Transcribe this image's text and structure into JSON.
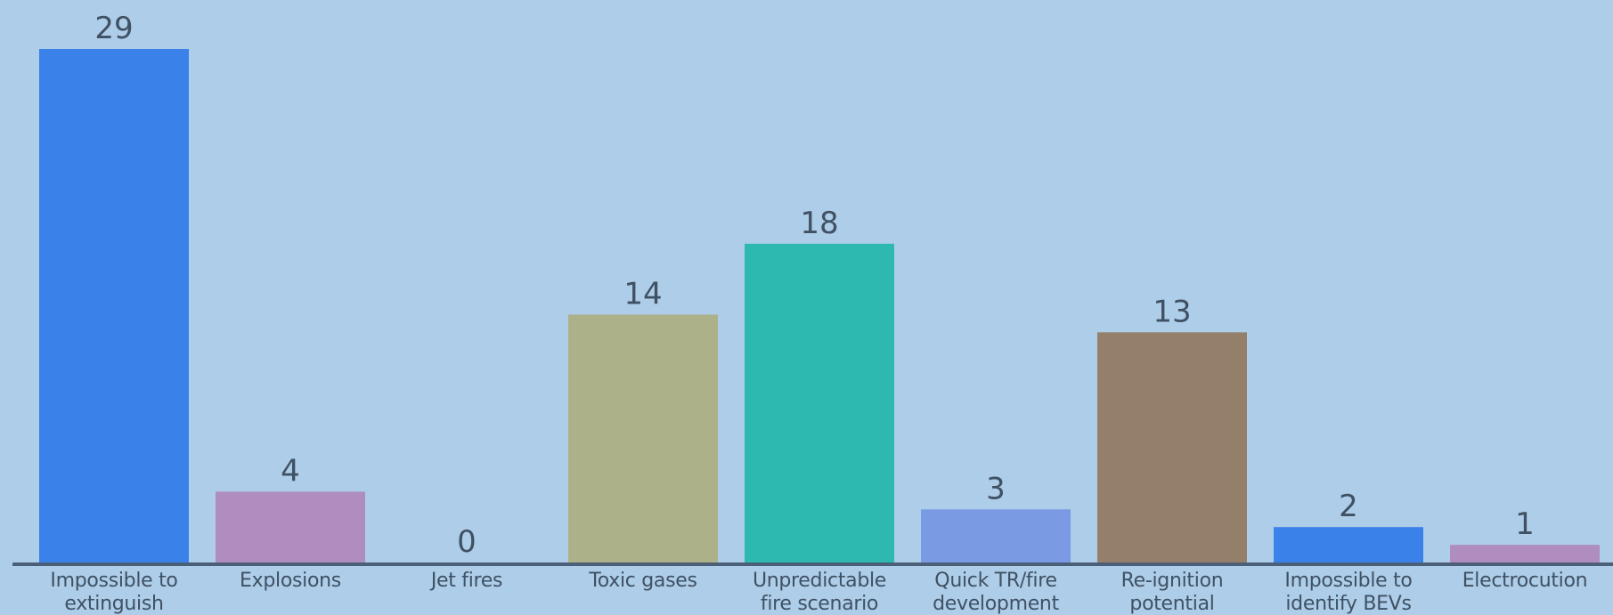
{
  "chart_data": {
    "type": "bar",
    "categories": [
      [
        "Impossible to",
        "extinguish"
      ],
      [
        "Explosions"
      ],
      [
        "Jet fires"
      ],
      [
        "Toxic gases"
      ],
      [
        "Unpredictable",
        "fire scenario"
      ],
      [
        "Quick TR/fire",
        "development"
      ],
      [
        "Re-ignition",
        "potential"
      ],
      [
        "Impossible to",
        "identify BEVs"
      ],
      [
        "Electrocution"
      ]
    ],
    "values": [
      29,
      4,
      0,
      14,
      18,
      3,
      13,
      2,
      1
    ],
    "colors": [
      "#3a82ea",
      "#b08dbf",
      "#aecde9",
      "#acb189",
      "#2eb9b0",
      "#7a9be4",
      "#947f6b",
      "#3a82ea",
      "#b08dbf"
    ],
    "ylim": [
      0,
      29
    ],
    "grid": false,
    "legend": "none",
    "title": "",
    "xlabel": "",
    "ylabel": ""
  }
}
